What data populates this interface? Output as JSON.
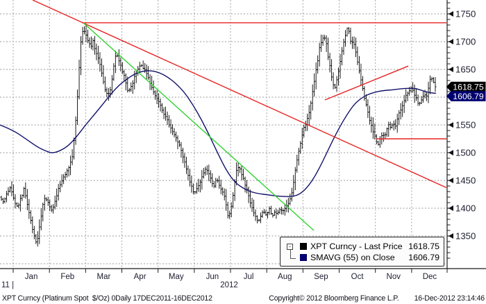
{
  "chart_data": {
    "type": "bar",
    "subtype": "daily-ohlc-bar-chart",
    "title": "XPT Curncy (Platinum Spot  $/Oz) 0Daily 17DEC2011-16DEC2012",
    "note": "x values are horizontal plot positions in px; x=0 is 17DEC2011, x=628 is 16DEC2012; months evenly spaced",
    "x_axis": {
      "month_labels": [
        "Jan",
        "Feb",
        "Mar",
        "Apr",
        "May",
        "Jun",
        "Jul",
        "Aug",
        "Sep",
        "Oct",
        "Nov",
        "Dec"
      ],
      "year_start_label": "11 |",
      "year_label": "2012",
      "start": "17DEC2011",
      "end": "16DEC2012"
    },
    "y_axis": {
      "side": "right",
      "major_ticks": [
        1750,
        1700,
        1650,
        1600,
        1550,
        1500,
        1450,
        1400,
        1350
      ],
      "minor_step": 10,
      "minor_min": 1300,
      "minor_max": 1770,
      "value_top": 1750,
      "value_bottom": 1294
    },
    "series": [
      {
        "name": "XPT Curncy - Last Price",
        "type": "ohlc_bars",
        "color": "#000000",
        "last_price": 1618.75,
        "close_keypoints": [
          [
            0,
            1420
          ],
          [
            5,
            1408
          ],
          [
            10,
            1425
          ],
          [
            15,
            1438
          ],
          [
            20,
            1415
          ],
          [
            25,
            1400
          ],
          [
            30,
            1418
          ],
          [
            35,
            1435
          ],
          [
            40,
            1402
          ],
          [
            45,
            1372
          ],
          [
            50,
            1348
          ],
          [
            53,
            1335
          ],
          [
            57,
            1368
          ],
          [
            61,
            1402
          ],
          [
            65,
            1418
          ],
          [
            70,
            1408
          ],
          [
            75,
            1396
          ],
          [
            80,
            1416
          ],
          [
            85,
            1438
          ],
          [
            90,
            1452
          ],
          [
            95,
            1462
          ],
          [
            100,
            1476
          ],
          [
            104,
            1494
          ],
          [
            107,
            1528
          ],
          [
            110,
            1572
          ],
          [
            113,
            1632
          ],
          [
            116,
            1694
          ],
          [
            118,
            1722
          ],
          [
            120,
            1712
          ],
          [
            122,
            1720
          ],
          [
            125,
            1710
          ],
          [
            128,
            1698
          ],
          [
            131,
            1690
          ],
          [
            134,
            1700
          ],
          [
            137,
            1686
          ],
          [
            140,
            1676
          ],
          [
            143,
            1666
          ],
          [
            146,
            1648
          ],
          [
            149,
            1628
          ],
          [
            152,
            1610
          ],
          [
            155,
            1602
          ],
          [
            158,
            1608
          ],
          [
            161,
            1630
          ],
          [
            164,
            1656
          ],
          [
            167,
            1678
          ],
          [
            170,
            1670
          ],
          [
            173,
            1658
          ],
          [
            176,
            1648
          ],
          [
            179,
            1636
          ],
          [
            182,
            1620
          ],
          [
            185,
            1608
          ],
          [
            188,
            1614
          ],
          [
            191,
            1626
          ],
          [
            194,
            1636
          ],
          [
            197,
            1646
          ],
          [
            200,
            1654
          ],
          [
            204,
            1658
          ],
          [
            208,
            1650
          ],
          [
            212,
            1638
          ],
          [
            216,
            1626
          ],
          [
            220,
            1614
          ],
          [
            224,
            1604
          ],
          [
            228,
            1594
          ],
          [
            232,
            1584
          ],
          [
            236,
            1571
          ],
          [
            240,
            1561
          ],
          [
            244,
            1551
          ],
          [
            248,
            1541
          ],
          [
            252,
            1531
          ],
          [
            256,
            1519
          ],
          [
            260,
            1507
          ],
          [
            264,
            1491
          ],
          [
            268,
            1474
          ],
          [
            272,
            1456
          ],
          [
            276,
            1438
          ],
          [
            280,
            1426
          ],
          [
            284,
            1436
          ],
          [
            288,
            1448
          ],
          [
            292,
            1460
          ],
          [
            296,
            1471
          ],
          [
            300,
            1464
          ],
          [
            304,
            1450
          ],
          [
            308,
            1441
          ],
          [
            312,
            1451
          ],
          [
            316,
            1439
          ],
          [
            320,
            1429
          ],
          [
            324,
            1417
          ],
          [
            328,
            1387
          ],
          [
            332,
            1394
          ],
          [
            336,
            1428
          ],
          [
            340,
            1468
          ],
          [
            344,
            1477
          ],
          [
            348,
            1461
          ],
          [
            352,
            1447
          ],
          [
            356,
            1431
          ],
          [
            360,
            1414
          ],
          [
            364,
            1399
          ],
          [
            368,
            1384
          ],
          [
            372,
            1374
          ],
          [
            376,
            1387
          ],
          [
            380,
            1394
          ],
          [
            384,
            1389
          ],
          [
            388,
            1397
          ],
          [
            392,
            1384
          ],
          [
            396,
            1394
          ],
          [
            400,
            1391
          ],
          [
            404,
            1399
          ],
          [
            408,
            1395
          ],
          [
            412,
            1403
          ],
          [
            416,
            1411
          ],
          [
            420,
            1424
          ],
          [
            424,
            1457
          ],
          [
            428,
            1491
          ],
          [
            432,
            1514
          ],
          [
            436,
            1539
          ],
          [
            440,
            1551
          ],
          [
            444,
            1564
          ],
          [
            448,
            1589
          ],
          [
            452,
            1624
          ],
          [
            456,
            1654
          ],
          [
            460,
            1687
          ],
          [
            464,
            1704
          ],
          [
            467,
            1711
          ],
          [
            470,
            1699
          ],
          [
            473,
            1671
          ],
          [
            476,
            1649
          ],
          [
            479,
            1629
          ],
          [
            482,
            1614
          ],
          [
            485,
            1631
          ],
          [
            488,
            1649
          ],
          [
            491,
            1671
          ],
          [
            494,
            1694
          ],
          [
            497,
            1711
          ],
          [
            500,
            1725
          ],
          [
            503,
            1715
          ],
          [
            506,
            1694
          ],
          [
            509,
            1701
          ],
          [
            512,
            1684
          ],
          [
            515,
            1664
          ],
          [
            518,
            1644
          ],
          [
            521,
            1624
          ],
          [
            524,
            1604
          ],
          [
            527,
            1587
          ],
          [
            530,
            1571
          ],
          [
            533,
            1557
          ],
          [
            536,
            1544
          ],
          [
            539,
            1531
          ],
          [
            542,
            1521
          ],
          [
            545,
            1514
          ],
          [
            548,
            1527
          ],
          [
            551,
            1537
          ],
          [
            554,
            1527
          ],
          [
            557,
            1541
          ],
          [
            560,
            1551
          ],
          [
            563,
            1544
          ],
          [
            566,
            1557
          ],
          [
            569,
            1547
          ],
          [
            572,
            1561
          ],
          [
            575,
            1571
          ],
          [
            578,
            1581
          ],
          [
            581,
            1591
          ],
          [
            584,
            1601
          ],
          [
            587,
            1607
          ],
          [
            590,
            1614
          ],
          [
            593,
            1617
          ],
          [
            596,
            1609
          ],
          [
            599,
            1599
          ],
          [
            602,
            1591
          ],
          [
            605,
            1587
          ],
          [
            608,
            1597
          ],
          [
            611,
            1607
          ],
          [
            614,
            1599
          ],
          [
            617,
            1614
          ],
          [
            620,
            1638
          ],
          [
            623,
            1631
          ],
          [
            626,
            1622
          ],
          [
            628,
            1618.75
          ]
        ]
      },
      {
        "name": "SMAVG (55) on Close",
        "type": "line",
        "color": "#10106a",
        "last_value": 1606.79,
        "keypoints": [
          [
            0,
            1550
          ],
          [
            18,
            1541
          ],
          [
            36,
            1526
          ],
          [
            54,
            1510
          ],
          [
            66,
            1503
          ],
          [
            75,
            1499
          ],
          [
            86,
            1503
          ],
          [
            98,
            1512
          ],
          [
            110,
            1528
          ],
          [
            122,
            1548
          ],
          [
            134,
            1566
          ],
          [
            146,
            1584
          ],
          [
            158,
            1603
          ],
          [
            170,
            1620
          ],
          [
            182,
            1632
          ],
          [
            194,
            1642
          ],
          [
            206,
            1647
          ],
          [
            218,
            1648
          ],
          [
            230,
            1644
          ],
          [
            242,
            1636
          ],
          [
            254,
            1624
          ],
          [
            266,
            1608
          ],
          [
            278,
            1586
          ],
          [
            290,
            1560
          ],
          [
            302,
            1530
          ],
          [
            314,
            1498
          ],
          [
            326,
            1468
          ],
          [
            338,
            1447
          ],
          [
            350,
            1436
          ],
          [
            362,
            1429
          ],
          [
            374,
            1426
          ],
          [
            386,
            1424
          ],
          [
            398,
            1422
          ],
          [
            410,
            1421
          ],
          [
            420,
            1421
          ],
          [
            430,
            1424
          ],
          [
            440,
            1434
          ],
          [
            450,
            1450
          ],
          [
            460,
            1472
          ],
          [
            470,
            1498
          ],
          [
            480,
            1524
          ],
          [
            490,
            1548
          ],
          [
            500,
            1569
          ],
          [
            510,
            1587
          ],
          [
            520,
            1598
          ],
          [
            530,
            1605
          ],
          [
            540,
            1609
          ],
          [
            552,
            1612
          ],
          [
            564,
            1613
          ],
          [
            576,
            1615
          ],
          [
            588,
            1616
          ],
          [
            598,
            1616
          ],
          [
            608,
            1612
          ],
          [
            618,
            1608
          ],
          [
            628,
            1607
          ]
        ]
      }
    ],
    "trendlines": [
      {
        "id": "descending-resistance",
        "color": "red",
        "points": [
          [
            47,
            1775
          ],
          [
            643,
            1437
          ]
        ]
      },
      {
        "id": "horizontal-resistance-top",
        "color": "red",
        "points": [
          [
            118,
            1734
          ],
          [
            643,
            1734
          ]
        ]
      },
      {
        "id": "ascending-wedge",
        "color": "red",
        "points": [
          [
            468,
            1595
          ],
          [
            588,
            1656
          ]
        ]
      },
      {
        "id": "horizontal-support",
        "color": "red",
        "points": [
          [
            542,
            1525
          ],
          [
            643,
            1525
          ]
        ]
      },
      {
        "id": "green-downtrend",
        "color": "green",
        "points": [
          [
            120,
            1734
          ],
          [
            452,
            1360
          ]
        ]
      }
    ],
    "price_tags": [
      {
        "text": "1618.75",
        "price": 1618.75,
        "bg": "#000000",
        "fg": "#ffffff"
      },
      {
        "text": "1606.79",
        "price": 1606.79,
        "bg": "#000070",
        "fg": "#ffffff"
      }
    ]
  },
  "legend": {
    "expander": "-",
    "rows": [
      {
        "swatch": "#000000",
        "label": "XPT Curncy - Last Price",
        "value": "1618.75"
      },
      {
        "swatch": "#000070",
        "label": "SMAVG (55) on Close",
        "value": "1606.79"
      }
    ]
  },
  "footer": {
    "left": "XPT Curncy (Platinum Spot  $/Oz) 0Daily 17DEC2011-16DEC2012",
    "copyright": "Copyright© 2012 Bloomberg Finance L.P.",
    "datetime": "16-Dec-2012 23:14:46"
  },
  "colors": {
    "red": "#e82222",
    "green": "#2fd32f",
    "sma": "#10106a",
    "bars": "#000000",
    "grid": "#9a9a9a",
    "axis": "#1a1a1a",
    "text": "#1c1c2e",
    "bg": "#ffffff"
  }
}
